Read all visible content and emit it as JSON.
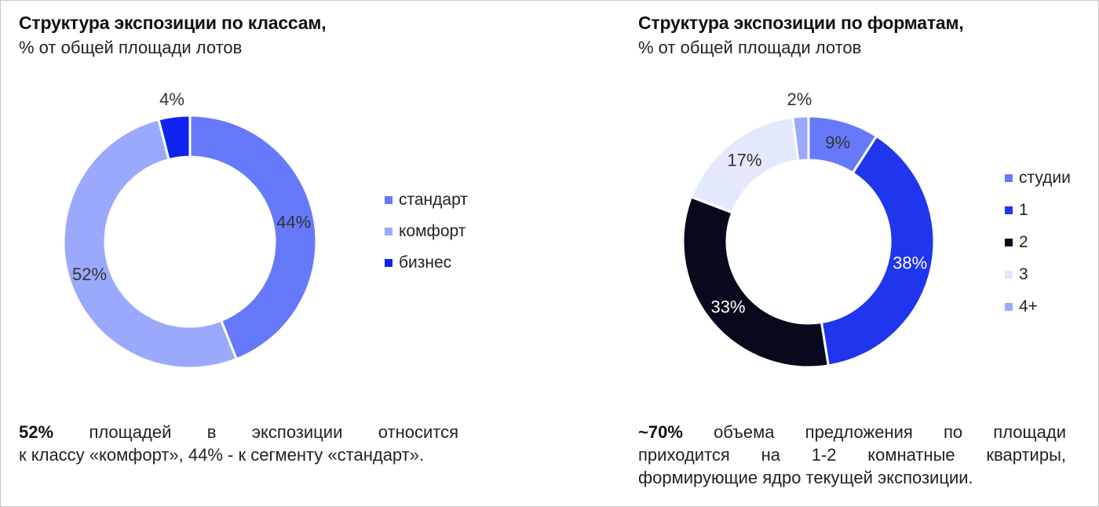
{
  "left_panel": {
    "title": "Структура экспозиции по классам,",
    "subtitle": "% от общей площади лотов",
    "note_bold": "52%",
    "note_line1_rest": "площадей в экспозиции относится",
    "note_line2": "к классу «комфорт», 44% - к сегменту «стандарт»."
  },
  "right_panel": {
    "title": "Структура экспозиции по форматам,",
    "subtitle": "% от общей площади лотов",
    "note_bold": "~70%",
    "note_line1_rest": "объема предложения по площади",
    "note_line2": "приходится на 1-2 комнатные квартиры,",
    "note_line3": "формирующие ядро текущей экспозиции."
  },
  "chart_data": [
    {
      "type": "pie",
      "title": "Структура экспозиции по классам,",
      "subtitle": "% от общей площади лотов",
      "legend_position": "right",
      "categories": [
        "стандарт",
        "комфорт",
        "бизнес"
      ],
      "values": [
        44,
        52,
        4
      ],
      "labels": [
        "44%",
        "52%",
        "4%"
      ],
      "colors": [
        "#6679fa",
        "#9aa9fb",
        "#0f24f0"
      ],
      "label_colors": [
        "#333333",
        "#333333",
        "#333333"
      ]
    },
    {
      "type": "pie",
      "title": "Структура экспозиции по форматам,",
      "subtitle": "% от общей площади лотов",
      "legend_position": "right",
      "categories": [
        "студии",
        "1",
        "2",
        "3",
        "4+"
      ],
      "values": [
        9,
        38,
        33,
        17,
        2
      ],
      "labels": [
        "9%",
        "38%",
        "33%",
        "17%",
        "2%"
      ],
      "colors": [
        "#6679fa",
        "#1f35ee",
        "#070a1c",
        "#e4e8fd",
        "#9aa9fb"
      ],
      "label_colors": [
        "#333333",
        "#ffffff",
        "#ffffff",
        "#333333",
        "#333333"
      ]
    }
  ]
}
